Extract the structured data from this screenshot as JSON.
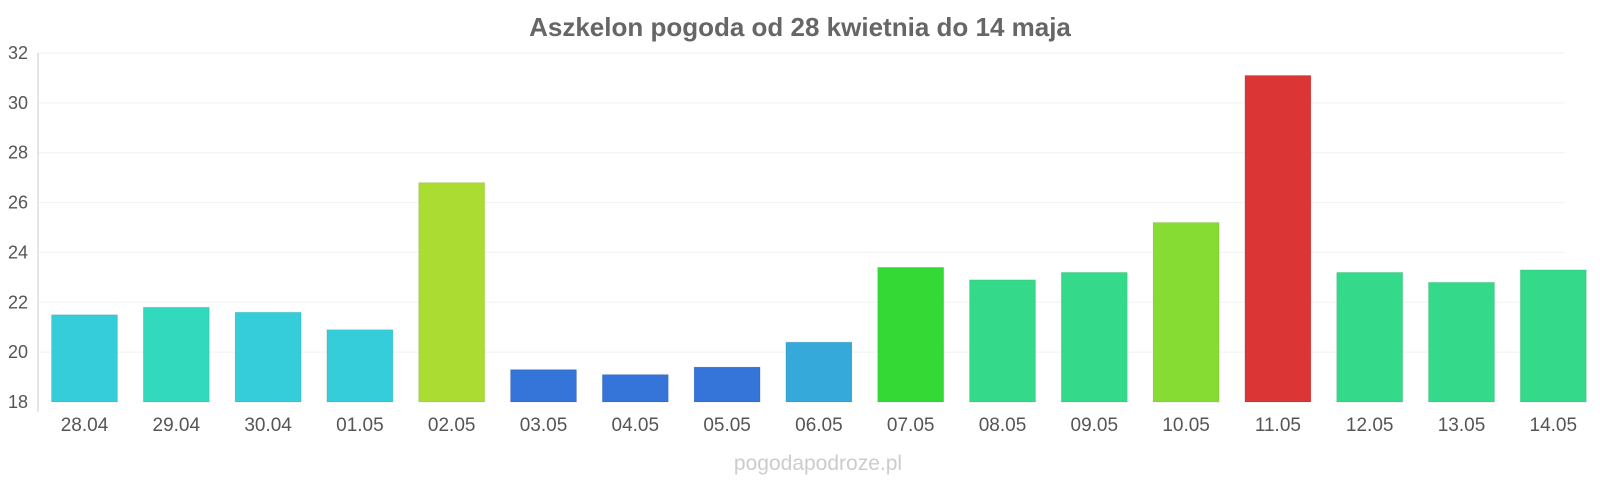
{
  "chart_data": {
    "type": "bar",
    "title": "Aszkelon pogoda od 28 kwietnia do 14 maja",
    "xlabel": "",
    "ylabel": "",
    "ylim": [
      18,
      32
    ],
    "yticks": [
      "18",
      "20",
      "22",
      "24",
      "26",
      "28",
      "30",
      "32"
    ],
    "grid": true,
    "categories": [
      "28.04",
      "29.04",
      "30.04",
      "01.05",
      "02.05",
      "03.05",
      "04.05",
      "05.05",
      "06.05",
      "07.05",
      "08.05",
      "09.05",
      "10.05",
      "11.05",
      "12.05",
      "13.05",
      "14.05"
    ],
    "values": [
      21.5,
      21.8,
      21.6,
      20.9,
      26.8,
      19.3,
      19.1,
      19.4,
      20.4,
      23.4,
      22.9,
      23.2,
      25.2,
      31.1,
      23.2,
      22.8,
      23.3
    ],
    "colors": [
      "#35cdd9",
      "#33d9bd",
      "#35cdd9",
      "#35cdd9",
      "#aadc32",
      "#3575d9",
      "#3575d9",
      "#3575d9",
      "#35a9d9",
      "#35d935",
      "#35d98a",
      "#35d98a",
      "#86dc32",
      "#dc3535",
      "#35d98a",
      "#35d98a",
      "#35d98a"
    ]
  },
  "watermark": "pogodapodroze.pl"
}
